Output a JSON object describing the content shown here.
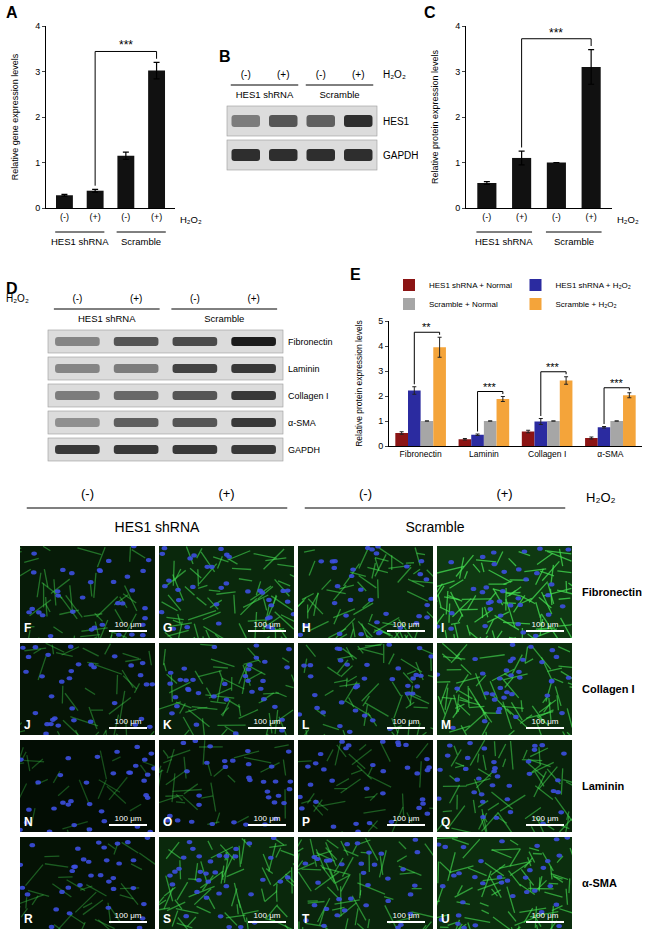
{
  "chart_data": [
    {
      "panel": "A",
      "type": "bar",
      "y_label": "Relative gene expression levels",
      "categories": [
        "(-)",
        "(+)",
        "(-)",
        "(+)"
      ],
      "values": [
        0.28,
        0.38,
        1.15,
        3.02
      ],
      "errors": [
        0.02,
        0.03,
        0.08,
        0.18
      ],
      "color": "#111111",
      "ylim": [
        0,
        4
      ],
      "yticks": [
        0,
        1,
        2,
        3,
        4
      ],
      "grid": false,
      "groups": [
        {
          "label": "HES1 shRNA",
          "count": 2
        },
        {
          "label": "Scramble",
          "count": 2
        }
      ],
      "treatment_label": "H₂O₂",
      "significance": [
        {
          "from": 1,
          "to": 3,
          "label": "***"
        }
      ]
    },
    {
      "panel": "C",
      "type": "bar",
      "y_label": "Relative protein expression levels",
      "categories": [
        "(-)",
        "(+)",
        "(-)",
        "(+)"
      ],
      "values": [
        0.55,
        1.1,
        1.0,
        3.1
      ],
      "errors": [
        0.03,
        0.15,
        0.0,
        0.38
      ],
      "color": "#111111",
      "ylim": [
        0,
        4
      ],
      "yticks": [
        0,
        1,
        2,
        3,
        4
      ],
      "grid": false,
      "groups": [
        {
          "label": "HES1 shRNA",
          "count": 2
        },
        {
          "label": "Scramble",
          "count": 2
        }
      ],
      "treatment_label": "H₂O₂",
      "significance": [
        {
          "from": 1,
          "to": 3,
          "label": "***"
        }
      ]
    },
    {
      "panel": "E",
      "type": "bar",
      "y_label": "Relative protein expression levels",
      "categories": [
        "Fibronectin",
        "Laminin",
        "Collagen I",
        "α-SMA"
      ],
      "series": [
        {
          "name": "HES1 shRNA + Normal",
          "color": "#8b1414",
          "values": [
            0.52,
            0.27,
            0.58,
            0.32
          ],
          "errors": [
            0.05,
            0.03,
            0.05,
            0.04
          ]
        },
        {
          "name": "HES1 shRNA + H₂O₂",
          "color": "#2b2ba0",
          "values": [
            2.22,
            0.45,
            0.98,
            0.75
          ],
          "errors": [
            0.15,
            0.03,
            0.12,
            0.03
          ]
        },
        {
          "name": "Scramble + Normal",
          "color": "#a6a6a6",
          "values": [
            1.0,
            1.0,
            1.0,
            1.0
          ],
          "errors": [
            0.0,
            0.0,
            0.0,
            0.0
          ]
        },
        {
          "name": "Scramble + H₂O₂",
          "color": "#f4a43a",
          "values": [
            3.95,
            1.88,
            2.62,
            2.03
          ],
          "errors": [
            0.4,
            0.1,
            0.15,
            0.1
          ]
        }
      ],
      "ylim": [
        0,
        5
      ],
      "yticks": [
        0,
        1,
        2,
        3,
        4,
        5
      ],
      "grid": false,
      "legend": "top",
      "significance": [
        {
          "category": 0,
          "from": 1,
          "to": 3,
          "label": "**"
        },
        {
          "category": 1,
          "from": 1,
          "to": 3,
          "label": "***"
        },
        {
          "category": 2,
          "from": 1,
          "to": 3,
          "label": "***"
        },
        {
          "category": 3,
          "from": 1,
          "to": 3,
          "label": "***"
        }
      ]
    }
  ],
  "blots": [
    {
      "panel": "B",
      "treatment_label": "H₂O₂",
      "lanes": [
        "(-)",
        "(+)",
        "(-)",
        "(+)"
      ],
      "groups": [
        {
          "label": "HES1 shRNA",
          "count": 2
        },
        {
          "label": "Scramble",
          "count": 2
        }
      ],
      "rows": [
        {
          "label": "HES1",
          "bands": [
            0.5,
            0.7,
            0.65,
            0.9
          ]
        },
        {
          "label": "GAPDH",
          "bands": [
            0.9,
            0.9,
            0.9,
            0.9
          ]
        }
      ]
    },
    {
      "panel": "D",
      "treatment_label": "H₂O₂",
      "lanes": [
        "(-)",
        "(+)",
        "(-)",
        "(+)"
      ],
      "groups": [
        {
          "label": "HES1 shRNA",
          "count": 2
        },
        {
          "label": "Scramble",
          "count": 2
        }
      ],
      "rows": [
        {
          "label": "Fibronectin",
          "bands": [
            0.45,
            0.7,
            0.75,
            1.0
          ]
        },
        {
          "label": "Laminin",
          "bands": [
            0.45,
            0.5,
            0.8,
            0.85
          ]
        },
        {
          "label": "Collagen I",
          "bands": [
            0.5,
            0.6,
            0.7,
            0.85
          ]
        },
        {
          "label": "α-SMA",
          "bands": [
            0.4,
            0.65,
            0.7,
            0.85
          ]
        },
        {
          "label": "GAPDH",
          "bands": [
            0.85,
            0.85,
            0.85,
            0.85
          ]
        }
      ]
    }
  ],
  "micrographs": {
    "treatment_label": "H₂O₂",
    "lanes": [
      "(-)",
      "(+)",
      "(-)",
      "(+)"
    ],
    "groups": [
      {
        "label": "HES1 shRNA",
        "count": 2
      },
      {
        "label": "Scramble",
        "count": 2
      }
    ],
    "scale_bar": "100 μm",
    "rows": [
      {
        "label": "Fibronectin",
        "panels": [
          "F",
          "G",
          "H",
          "I"
        ],
        "signal": [
          0.35,
          0.6,
          0.55,
          0.9
        ]
      },
      {
        "label": "Collagen I",
        "panels": [
          "J",
          "K",
          "L",
          "M"
        ],
        "signal": [
          0.25,
          0.45,
          0.45,
          0.7
        ]
      },
      {
        "label": "Laminin",
        "panels": [
          "N",
          "O",
          "P",
          "Q"
        ],
        "signal": [
          0.1,
          0.2,
          0.2,
          0.5
        ]
      },
      {
        "label": "α-SMA",
        "panels": [
          "R",
          "S",
          "T",
          "U"
        ],
        "signal": [
          0.2,
          0.6,
          0.55,
          0.7
        ]
      }
    ]
  }
}
